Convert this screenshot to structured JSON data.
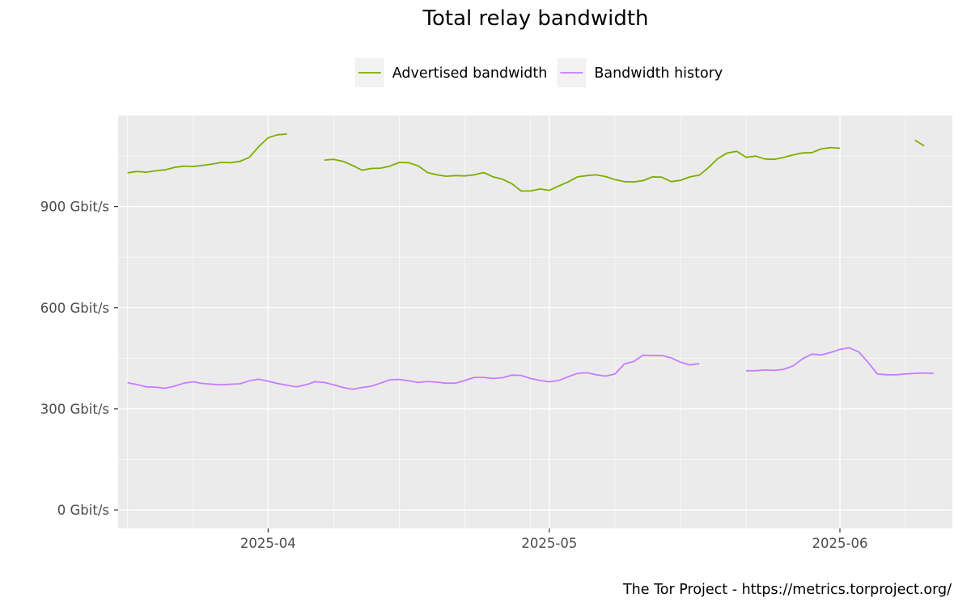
{
  "chart_data": {
    "type": "line",
    "title": "Total relay bandwidth",
    "caption": "The Tor Project - https://metrics.torproject.org/",
    "xlabel": "",
    "ylabel": "",
    "y_unit": "Gbit/s",
    "xlim": [
      "2025-03-16",
      "2025-06-13"
    ],
    "ylim": [
      -55,
      1170
    ],
    "y_ticks": [
      {
        "value": 0,
        "label": "0 Gbit/s"
      },
      {
        "value": 300,
        "label": "300 Gbit/s"
      },
      {
        "value": 600,
        "label": "600 Gbit/s"
      },
      {
        "value": 900,
        "label": "900 Gbit/s"
      }
    ],
    "x_ticks": [
      {
        "value": "2025-04-01",
        "label": "2025-04"
      },
      {
        "value": "2025-05-01",
        "label": "2025-05"
      },
      {
        "value": "2025-06-01",
        "label": "2025-06"
      }
    ],
    "x_minor_ticks": [
      "2025-03-17",
      "2025-03-24",
      "2025-04-08",
      "2025-04-15",
      "2025-04-22",
      "2025-04-29",
      "2025-05-08",
      "2025-05-15",
      "2025-05-22",
      "2025-06-08",
      "2025-06-15"
    ],
    "grid": true,
    "legend_position": "top",
    "series": [
      {
        "name": "Advertised bandwidth",
        "color": "#7cae00",
        "points": [
          [
            "2025-03-17",
            1000
          ],
          [
            "2025-03-18",
            1004
          ],
          [
            "2025-03-19",
            1002
          ],
          [
            "2025-03-20",
            1006
          ],
          [
            "2025-03-21",
            1009
          ],
          [
            "2025-03-22",
            1016
          ],
          [
            "2025-03-23",
            1020
          ],
          [
            "2025-03-24",
            1019
          ],
          [
            "2025-03-25",
            1022
          ],
          [
            "2025-03-26",
            1026
          ],
          [
            "2025-03-27",
            1031
          ],
          [
            "2025-03-28",
            1030
          ],
          [
            "2025-03-29",
            1034
          ],
          [
            "2025-03-30",
            1046
          ],
          [
            "2025-03-31",
            1078
          ],
          [
            "2025-04-01",
            1104
          ],
          [
            "2025-04-02",
            1113
          ],
          [
            "2025-04-03",
            1115
          ],
          null,
          [
            "2025-04-07",
            1038
          ],
          [
            "2025-04-08",
            1040
          ],
          [
            "2025-04-09",
            1034
          ],
          [
            "2025-04-10",
            1022
          ],
          [
            "2025-04-11",
            1008
          ],
          [
            "2025-04-12",
            1013
          ],
          [
            "2025-04-13",
            1014
          ],
          [
            "2025-04-14",
            1020
          ],
          [
            "2025-04-15",
            1031
          ],
          [
            "2025-04-16",
            1030
          ],
          [
            "2025-04-17",
            1021
          ],
          [
            "2025-04-18",
            1001
          ],
          [
            "2025-04-19",
            994
          ],
          [
            "2025-04-20",
            990
          ],
          [
            "2025-04-21",
            992
          ],
          [
            "2025-04-22",
            991
          ],
          [
            "2025-04-23",
            994
          ],
          [
            "2025-04-24",
            1001
          ],
          [
            "2025-04-25",
            988
          ],
          [
            "2025-04-26",
            981
          ],
          [
            "2025-04-27",
            968
          ],
          [
            "2025-04-28",
            946
          ],
          [
            "2025-04-29",
            946
          ],
          [
            "2025-04-30",
            952
          ],
          [
            "2025-05-01",
            948
          ],
          [
            "2025-05-02",
            961
          ],
          [
            "2025-05-03",
            973
          ],
          [
            "2025-05-04",
            988
          ],
          [
            "2025-05-05",
            992
          ],
          [
            "2025-05-06",
            994
          ],
          [
            "2025-05-07",
            989
          ],
          [
            "2025-05-08",
            980
          ],
          [
            "2025-05-09",
            974
          ],
          [
            "2025-05-10",
            973
          ],
          [
            "2025-05-11",
            977
          ],
          [
            "2025-05-12",
            988
          ],
          [
            "2025-05-13",
            987
          ],
          [
            "2025-05-14",
            974
          ],
          [
            "2025-05-15",
            978
          ],
          [
            "2025-05-16",
            988
          ],
          [
            "2025-05-17",
            993
          ],
          [
            "2025-05-18",
            1016
          ],
          [
            "2025-05-19",
            1043
          ],
          [
            "2025-05-20",
            1059
          ],
          [
            "2025-05-21",
            1064
          ],
          [
            "2025-05-22",
            1046
          ],
          [
            "2025-05-23",
            1050
          ],
          [
            "2025-05-24",
            1041
          ],
          [
            "2025-05-25",
            1040
          ],
          [
            "2025-05-26",
            1046
          ],
          [
            "2025-05-27",
            1053
          ],
          [
            "2025-05-28",
            1059
          ],
          [
            "2025-05-29",
            1060
          ],
          [
            "2025-05-30",
            1071
          ],
          [
            "2025-05-31",
            1075
          ],
          [
            "2025-06-01",
            1073
          ],
          null,
          [
            "2025-06-09",
            1097
          ],
          [
            "2025-06-10",
            1080
          ]
        ]
      },
      {
        "name": "Bandwidth history",
        "color": "#c77cff",
        "points": [
          [
            "2025-03-17",
            377
          ],
          [
            "2025-03-18",
            372
          ],
          [
            "2025-03-19",
            365
          ],
          [
            "2025-03-20",
            364
          ],
          [
            "2025-03-21",
            361
          ],
          [
            "2025-03-22",
            367
          ],
          [
            "2025-03-23",
            376
          ],
          [
            "2025-03-24",
            380
          ],
          [
            "2025-03-25",
            375
          ],
          [
            "2025-03-26",
            373
          ],
          [
            "2025-03-27",
            371
          ],
          [
            "2025-03-28",
            373
          ],
          [
            "2025-03-29",
            374
          ],
          [
            "2025-03-30",
            383
          ],
          [
            "2025-03-31",
            388
          ],
          [
            "2025-04-01",
            382
          ],
          [
            "2025-04-02",
            375
          ],
          [
            "2025-04-03",
            370
          ],
          [
            "2025-04-04",
            365
          ],
          [
            "2025-04-05",
            371
          ],
          [
            "2025-04-06",
            380
          ],
          [
            "2025-04-07",
            378
          ],
          [
            "2025-04-08",
            371
          ],
          [
            "2025-04-09",
            363
          ],
          [
            "2025-04-10",
            358
          ],
          [
            "2025-04-11",
            363
          ],
          [
            "2025-04-12",
            367
          ],
          [
            "2025-04-13",
            376
          ],
          [
            "2025-04-14",
            386
          ],
          [
            "2025-04-15",
            387
          ],
          [
            "2025-04-16",
            383
          ],
          [
            "2025-04-17",
            378
          ],
          [
            "2025-04-18",
            381
          ],
          [
            "2025-04-19",
            379
          ],
          [
            "2025-04-20",
            376
          ],
          [
            "2025-04-21",
            376
          ],
          [
            "2025-04-22",
            384
          ],
          [
            "2025-04-23",
            393
          ],
          [
            "2025-04-24",
            393
          ],
          [
            "2025-04-25",
            390
          ],
          [
            "2025-04-26",
            392
          ],
          [
            "2025-04-27",
            400
          ],
          [
            "2025-04-28",
            399
          ],
          [
            "2025-04-29",
            390
          ],
          [
            "2025-04-30",
            384
          ],
          [
            "2025-05-01",
            380
          ],
          [
            "2025-05-02",
            384
          ],
          [
            "2025-05-03",
            395
          ],
          [
            "2025-05-04",
            405
          ],
          [
            "2025-05-05",
            407
          ],
          [
            "2025-05-06",
            401
          ],
          [
            "2025-05-07",
            397
          ],
          [
            "2025-05-08",
            403
          ],
          [
            "2025-05-09",
            433
          ],
          [
            "2025-05-10",
            440
          ],
          [
            "2025-05-11",
            459
          ],
          [
            "2025-05-12",
            458
          ],
          [
            "2025-05-13",
            458
          ],
          [
            "2025-05-14",
            451
          ],
          [
            "2025-05-15",
            438
          ],
          [
            "2025-05-16",
            430
          ],
          [
            "2025-05-17",
            434
          ],
          null,
          [
            "2025-05-22",
            413
          ],
          [
            "2025-05-23",
            413
          ],
          [
            "2025-05-24",
            415
          ],
          [
            "2025-05-25",
            414
          ],
          [
            "2025-05-26",
            417
          ],
          [
            "2025-05-27",
            427
          ],
          [
            "2025-05-28",
            448
          ],
          [
            "2025-05-29",
            462
          ],
          [
            "2025-05-30",
            460
          ],
          [
            "2025-05-31",
            467
          ],
          [
            "2025-06-01",
            476
          ],
          [
            "2025-06-02",
            481
          ],
          [
            "2025-06-03",
            469
          ],
          [
            "2025-06-04",
            438
          ],
          [
            "2025-06-05",
            403
          ],
          [
            "2025-06-06",
            401
          ],
          [
            "2025-06-07",
            401
          ],
          [
            "2025-06-08",
            403
          ],
          [
            "2025-06-09",
            405
          ],
          [
            "2025-06-10",
            406
          ],
          [
            "2025-06-11",
            405
          ]
        ]
      }
    ]
  }
}
